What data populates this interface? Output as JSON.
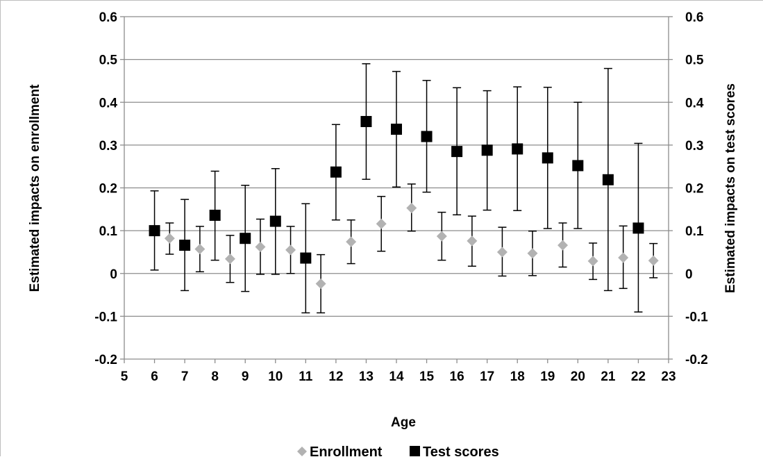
{
  "chart_data": {
    "type": "scatter",
    "xlabel": "Age",
    "ylabel_left": "Estimated impacts on enrollment",
    "ylabel_right": "Estimated impacts on test  scores",
    "xlim": [
      5,
      23
    ],
    "ylim": [
      -0.2,
      0.6
    ],
    "x_ticks": [
      "5",
      "6",
      "7",
      "8",
      "9",
      "10",
      "11",
      "12",
      "13",
      "14",
      "15",
      "16",
      "17",
      "18",
      "19",
      "20",
      "21",
      "22",
      "23"
    ],
    "y_ticks_left": [
      "-0.2",
      "-0.1",
      "0",
      "0.1",
      "0.2",
      "0.3",
      "0.4",
      "0.5",
      "0.6"
    ],
    "y_ticks_right": [
      "-0.2",
      "-0.1",
      "0",
      "0.1",
      "0.2",
      "0.3",
      "0.4",
      "0.5",
      "0.6"
    ],
    "grid": "horizontal",
    "legend_position": "bottom",
    "series": [
      {
        "name": "Enrollment",
        "marker": "diamond",
        "color": "#b2b2b2",
        "points": [
          {
            "x": 6.5,
            "y": 0.082,
            "lo": 0.045,
            "hi": 0.118
          },
          {
            "x": 7.5,
            "y": 0.057,
            "lo": 0.004,
            "hi": 0.11
          },
          {
            "x": 8.5,
            "y": 0.034,
            "lo": -0.021,
            "hi": 0.089
          },
          {
            "x": 9.5,
            "y": 0.062,
            "lo": -0.002,
            "hi": 0.127
          },
          {
            "x": 10.5,
            "y": 0.055,
            "lo": 0.0,
            "hi": 0.11
          },
          {
            "x": 11.5,
            "y": -0.024,
            "lo": -0.092,
            "hi": 0.044
          },
          {
            "x": 12.5,
            "y": 0.074,
            "lo": 0.023,
            "hi": 0.125
          },
          {
            "x": 13.5,
            "y": 0.116,
            "lo": 0.052,
            "hi": 0.18
          },
          {
            "x": 14.5,
            "y": 0.153,
            "lo": 0.099,
            "hi": 0.209
          },
          {
            "x": 15.5,
            "y": 0.087,
            "lo": 0.031,
            "hi": 0.143
          },
          {
            "x": 16.5,
            "y": 0.076,
            "lo": 0.017,
            "hi": 0.134
          },
          {
            "x": 17.5,
            "y": 0.05,
            "lo": -0.006,
            "hi": 0.108
          },
          {
            "x": 18.5,
            "y": 0.047,
            "lo": -0.005,
            "hi": 0.099
          },
          {
            "x": 19.5,
            "y": 0.066,
            "lo": 0.015,
            "hi": 0.118
          },
          {
            "x": 20.5,
            "y": 0.029,
            "lo": -0.014,
            "hi": 0.071
          },
          {
            "x": 21.5,
            "y": 0.037,
            "lo": -0.035,
            "hi": 0.111
          },
          {
            "x": 22.5,
            "y": 0.03,
            "lo": -0.01,
            "hi": 0.07
          }
        ]
      },
      {
        "name": "Test scores",
        "marker": "square",
        "color": "#000000",
        "points": [
          {
            "x": 6,
            "y": 0.1,
            "lo": 0.008,
            "hi": 0.193
          },
          {
            "x": 7,
            "y": 0.066,
            "lo": -0.04,
            "hi": 0.173
          },
          {
            "x": 8,
            "y": 0.136,
            "lo": 0.031,
            "hi": 0.239
          },
          {
            "x": 9,
            "y": 0.082,
            "lo": -0.042,
            "hi": 0.206
          },
          {
            "x": 10,
            "y": 0.122,
            "lo": -0.002,
            "hi": 0.245
          },
          {
            "x": 11,
            "y": 0.036,
            "lo": -0.092,
            "hi": 0.163
          },
          {
            "x": 12,
            "y": 0.237,
            "lo": 0.125,
            "hi": 0.348
          },
          {
            "x": 13,
            "y": 0.355,
            "lo": 0.22,
            "hi": 0.49
          },
          {
            "x": 14,
            "y": 0.337,
            "lo": 0.202,
            "hi": 0.472
          },
          {
            "x": 15,
            "y": 0.32,
            "lo": 0.19,
            "hi": 0.451
          },
          {
            "x": 16,
            "y": 0.285,
            "lo": 0.137,
            "hi": 0.434
          },
          {
            "x": 17,
            "y": 0.288,
            "lo": 0.148,
            "hi": 0.427
          },
          {
            "x": 18,
            "y": 0.291,
            "lo": 0.147,
            "hi": 0.436
          },
          {
            "x": 19,
            "y": 0.27,
            "lo": 0.105,
            "hi": 0.435
          },
          {
            "x": 20,
            "y": 0.252,
            "lo": 0.105,
            "hi": 0.4
          },
          {
            "x": 21,
            "y": 0.219,
            "lo": -0.04,
            "hi": 0.479
          },
          {
            "x": 22,
            "y": 0.106,
            "lo": -0.09,
            "hi": 0.304
          }
        ]
      }
    ]
  }
}
